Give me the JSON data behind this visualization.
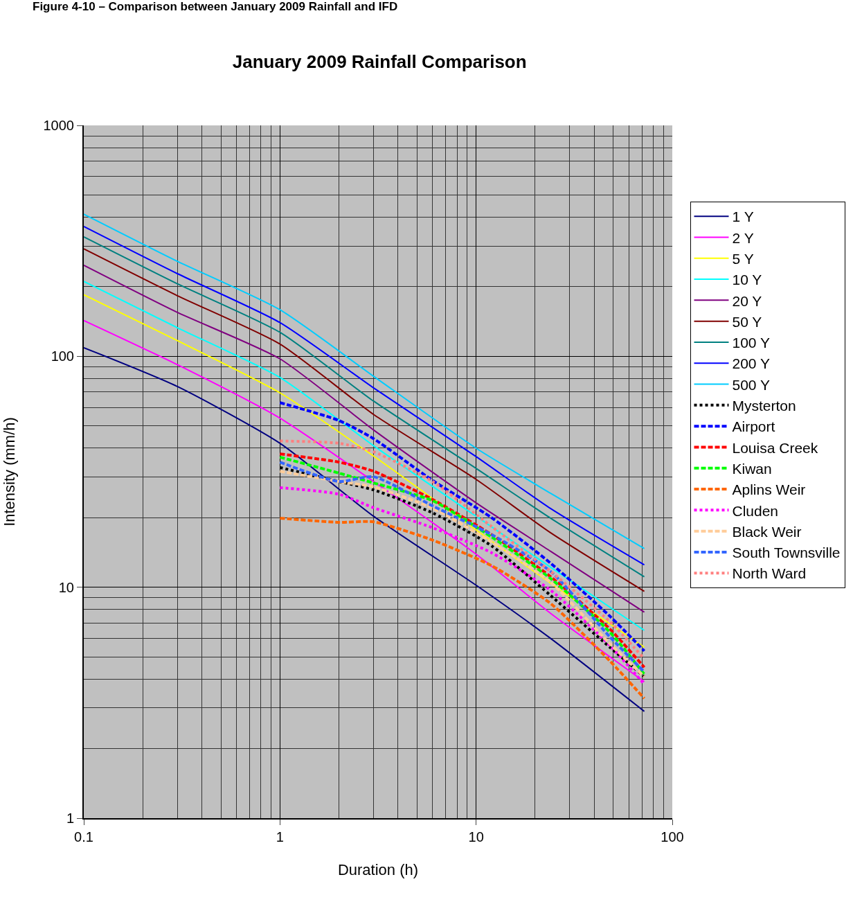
{
  "chart_data": {
    "type": "line",
    "title": "January 2009 Rainfall Comparison",
    "xlabel": "Duration (h)",
    "ylabel": "Intensity (mm/h)",
    "annotations": [
      "Figure 4-10 – Comparison between January 2009 Rainfall and IFD"
    ],
    "log": "xy",
    "grid": true,
    "legend": "right",
    "xlim": [
      0.1,
      100
    ],
    "ylim": [
      1,
      1000
    ],
    "xticks": [
      0.1,
      1,
      10,
      100
    ],
    "yticks": [
      1,
      10,
      100,
      1000
    ],
    "x": [
      0.1,
      0.3,
      1,
      3,
      10,
      24,
      72
    ],
    "series": [
      {
        "name": "1 Y",
        "color": "#000080",
        "line_style": "solid",
        "values": [
          109,
          74,
          42,
          20.3,
          10.2,
          6.0,
          2.9
        ]
      },
      {
        "name": "2 Y",
        "color": "#ff00ff",
        "line_style": "solid",
        "values": [
          143,
          92,
          54,
          28.7,
          13.9,
          7.7,
          3.9
        ]
      },
      {
        "name": "5 Y",
        "color": "#ffff00",
        "line_style": "solid",
        "values": [
          185,
          117,
          69.5,
          37,
          17.7,
          10.4,
          5.5
        ]
      },
      {
        "name": "10 Y",
        "color": "#00ffff",
        "line_style": "solid",
        "values": [
          211,
          133,
          81,
          41,
          20.3,
          12.2,
          6.5
        ]
      },
      {
        "name": "20 Y",
        "color": "#800080",
        "line_style": "solid",
        "values": [
          248,
          155,
          97.5,
          48,
          23.2,
          14.3,
          7.8
        ]
      },
      {
        "name": "50 Y",
        "color": "#800000",
        "line_style": "solid",
        "values": [
          292,
          183,
          113,
          56,
          29.3,
          17.2,
          9.6
        ]
      },
      {
        "name": "100 Y",
        "color": "#008080",
        "line_style": "solid",
        "values": [
          329,
          206,
          127,
          64,
          32.7,
          19.9,
          11.1
        ]
      },
      {
        "name": "200 Y",
        "color": "#0000ff",
        "line_style": "solid",
        "values": [
          365,
          228,
          140,
          73,
          36.8,
          21.9,
          12.5
        ]
      },
      {
        "name": "500 Y",
        "color": "#00ccff",
        "line_style": "solid",
        "values": [
          413,
          258,
          159,
          82,
          40,
          25.5,
          14.7
        ]
      },
      {
        "name": "Mysterton",
        "color": "#000000",
        "line_style": "dotted",
        "x": [
          1,
          2,
          3,
          6,
          12,
          24,
          48,
          72
        ],
        "values": [
          33,
          28.7,
          26.4,
          21,
          15.1,
          9.2,
          5.5,
          4.1
        ]
      },
      {
        "name": "Airport",
        "color": "#0000ff",
        "line_style": "dashed",
        "x": [
          1,
          2,
          3,
          6,
          12,
          24,
          48,
          72
        ],
        "values": [
          63,
          52.7,
          44,
          29,
          20,
          12.7,
          7.5,
          5.3
        ]
      },
      {
        "name": "Louisa Creek",
        "color": "#ff0000",
        "line_style": "dashed",
        "x": [
          1,
          2,
          3,
          6,
          12,
          24,
          48,
          72
        ],
        "values": [
          37.8,
          34.8,
          31.8,
          24,
          16.9,
          11.1,
          6.6,
          4.5
        ]
      },
      {
        "name": "Kiwan",
        "color": "#00ff00",
        "line_style": "dashed",
        "x": [
          1,
          2,
          3,
          6,
          12,
          24,
          48,
          72
        ],
        "values": [
          36.6,
          31.2,
          28.3,
          23.7,
          16.5,
          10.9,
          6.4,
          4.2
        ]
      },
      {
        "name": "Aplins Weir",
        "color": "#ff6600",
        "line_style": "dashed",
        "x": [
          1,
          2,
          3,
          6,
          12,
          24,
          48,
          72
        ],
        "values": [
          19.9,
          19.1,
          19.2,
          16,
          12.4,
          8.5,
          4.8,
          3.3
        ]
      },
      {
        "name": "Cluden",
        "color": "#ff00ff",
        "line_style": "dotted",
        "x": [
          1,
          2,
          3,
          6,
          12,
          24,
          48,
          72
        ],
        "values": [
          27,
          25.3,
          22.1,
          18.1,
          14.1,
          9.7,
          5.6,
          3.8
        ]
      },
      {
        "name": "Black Weir",
        "color": "#ffcc99",
        "line_style": "dashed",
        "x": [
          1,
          2,
          3,
          6,
          12,
          24,
          48,
          72
        ],
        "values": [
          31.8,
          28.7,
          27.2,
          22,
          15.7,
          10.5,
          5.7,
          4.1
        ]
      },
      {
        "name": "South Townsville",
        "color": "#3366ff",
        "line_style": "dashed",
        "x": [
          1,
          2,
          3,
          6,
          12,
          24,
          48,
          72
        ],
        "values": [
          34.8,
          28.7,
          30.1,
          22.5,
          16.9,
          11.7,
          6.1,
          4.3
        ]
      },
      {
        "name": "North Ward",
        "color": "#ff8080",
        "line_style": "dotted",
        "x": [
          1,
          2,
          3,
          6,
          12,
          24,
          48,
          72
        ],
        "values": [
          43,
          42,
          38.6,
          28.7,
          18.3,
          11.7,
          7.1,
          4.9
        ]
      }
    ]
  }
}
